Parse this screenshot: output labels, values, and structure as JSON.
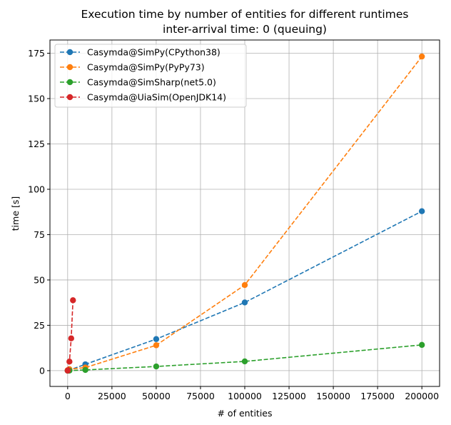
{
  "chart_data": {
    "type": "line",
    "title": "Execution time by number of entities for different runtimes",
    "subtitle": "inter-arrival time: 0 (queuing)",
    "xlabel": "# of entities",
    "ylabel": "time [s]",
    "xlim": [
      -10000,
      210000
    ],
    "ylim": [
      -8.7,
      182.3
    ],
    "xticks": [
      0,
      25000,
      50000,
      75000,
      100000,
      125000,
      150000,
      175000,
      200000
    ],
    "xtick_labels": [
      "0",
      "25000",
      "50000",
      "75000",
      "100000",
      "125000",
      "150000",
      "175000",
      "200000"
    ],
    "yticks": [
      0,
      25,
      50,
      75,
      100,
      125,
      150,
      175
    ],
    "ytick_labels": [
      "0",
      "25",
      "50",
      "75",
      "100",
      "125",
      "150",
      "175"
    ],
    "grid": true,
    "legend_position": "top-left",
    "series": [
      {
        "name": "Casymda@SimPy(CPython38)",
        "color": "#1f77b4",
        "x": [
          10,
          100,
          1000,
          10000,
          50000,
          100000,
          200000
        ],
        "y": [
          0.0,
          0.04,
          0.35,
          3.5,
          17.4,
          37.6,
          87.9
        ]
      },
      {
        "name": "Casymda@SimPy(PyPy73)",
        "color": "#ff7f0e",
        "x": [
          10,
          100,
          1000,
          10000,
          50000,
          100000,
          200000
        ],
        "y": [
          0.1,
          0.3,
          0.8,
          1.7,
          14.0,
          47.2,
          173.2
        ]
      },
      {
        "name": "Casymda@SimSharp(net5.0)",
        "color": "#2ca02c",
        "x": [
          10,
          100,
          1000,
          10000,
          50000,
          100000,
          200000
        ],
        "y": [
          0.0,
          0.02,
          0.05,
          0.4,
          2.3,
          5.1,
          14.2
        ]
      },
      {
        "name": "Casymda@UiaSim(OpenJDK14)",
        "color": "#d62728",
        "x": [
          10,
          100,
          1000,
          2000,
          3000
        ],
        "y": [
          0.0,
          0.2,
          5.0,
          17.8,
          38.8
        ]
      }
    ]
  }
}
